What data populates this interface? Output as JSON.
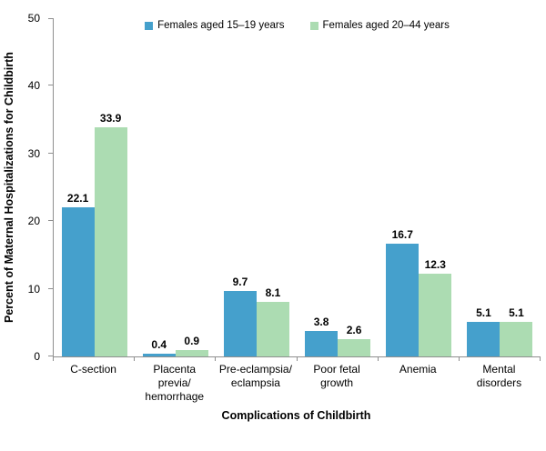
{
  "chart_data": {
    "type": "bar",
    "title": "",
    "xlabel": "Complications of Childbirth",
    "ylabel": "Percent of Maternal Hospitalizations for Childbirth",
    "ylim": [
      0,
      50
    ],
    "yticks": [
      0,
      10,
      20,
      30,
      40,
      50
    ],
    "grid": false,
    "legend_position": "top-center",
    "categories": [
      "C-section",
      "Placenta previa/hemorrhage",
      "Pre-eclampsia/eclampsia",
      "Poor fetal growth",
      "Anemia",
      "Mental disorders"
    ],
    "category_label_lines": [
      [
        "C-section"
      ],
      [
        "Placenta",
        "previa/",
        "hemorrhage"
      ],
      [
        "Pre-eclampsia/",
        "eclampsia"
      ],
      [
        "Poor fetal",
        "growth"
      ],
      [
        "Anemia"
      ],
      [
        "Mental",
        "disorders"
      ]
    ],
    "series": [
      {
        "name": "Females aged 15–19 years",
        "color": "#45A0CC",
        "values": [
          22.1,
          0.4,
          9.7,
          3.8,
          16.7,
          5.1
        ]
      },
      {
        "name": "Females aged 20–44 years",
        "color": "#ACDCB2",
        "values": [
          33.9,
          0.9,
          8.1,
          2.6,
          12.3,
          5.1
        ]
      }
    ],
    "value_labels_decimals": 1,
    "colors": {
      "axis_line": "#8F8F8F",
      "text": "#000000",
      "background": "#FFFFFF"
    }
  }
}
